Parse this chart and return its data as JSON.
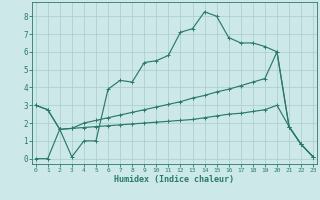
{
  "xlabel": "Humidex (Indice chaleur)",
  "bg_color": "#cce8e8",
  "grid_color": "#aacccc",
  "line_color": "#2a7a6a",
  "x_ticks": [
    0,
    1,
    2,
    3,
    4,
    5,
    6,
    7,
    8,
    9,
    10,
    11,
    12,
    13,
    14,
    15,
    16,
    17,
    18,
    19,
    20,
    21,
    22,
    23
  ],
  "y_ticks": [
    0,
    1,
    2,
    3,
    4,
    5,
    6,
    7,
    8
  ],
  "xlim": [
    -0.3,
    23.3
  ],
  "ylim": [
    -0.3,
    8.8
  ],
  "line1_x": [
    0,
    1,
    2,
    3,
    4,
    5,
    6,
    7,
    8,
    9,
    10,
    11,
    12,
    13,
    14,
    15,
    16,
    17,
    18,
    19,
    20,
    21,
    22,
    23
  ],
  "line1_y": [
    3.0,
    2.75,
    1.65,
    0.1,
    1.0,
    1.0,
    3.9,
    4.4,
    4.3,
    5.4,
    5.5,
    5.8,
    7.1,
    7.3,
    8.25,
    8.0,
    6.8,
    6.5,
    6.5,
    6.3,
    6.0,
    1.8,
    0.8,
    0.1
  ],
  "line2_x": [
    0,
    1,
    2,
    3,
    4,
    5,
    6,
    7,
    8,
    9,
    10,
    11,
    12,
    13,
    14,
    15,
    16,
    17,
    18,
    19,
    20,
    21,
    22,
    23
  ],
  "line2_y": [
    3.0,
    2.75,
    1.65,
    1.7,
    2.0,
    2.15,
    2.3,
    2.45,
    2.6,
    2.75,
    2.9,
    3.05,
    3.2,
    3.4,
    3.55,
    3.75,
    3.9,
    4.1,
    4.3,
    4.5,
    6.0,
    1.8,
    0.8,
    0.1
  ],
  "line3_x": [
    0,
    1,
    2,
    3,
    4,
    5,
    6,
    7,
    8,
    9,
    10,
    11,
    12,
    13,
    14,
    15,
    16,
    17,
    18,
    19,
    20,
    21,
    22,
    23
  ],
  "line3_y": [
    0.0,
    0.0,
    1.65,
    1.7,
    1.75,
    1.8,
    1.85,
    1.9,
    1.95,
    2.0,
    2.05,
    2.1,
    2.15,
    2.2,
    2.3,
    2.4,
    2.5,
    2.55,
    2.65,
    2.75,
    3.0,
    1.8,
    0.8,
    0.1
  ]
}
